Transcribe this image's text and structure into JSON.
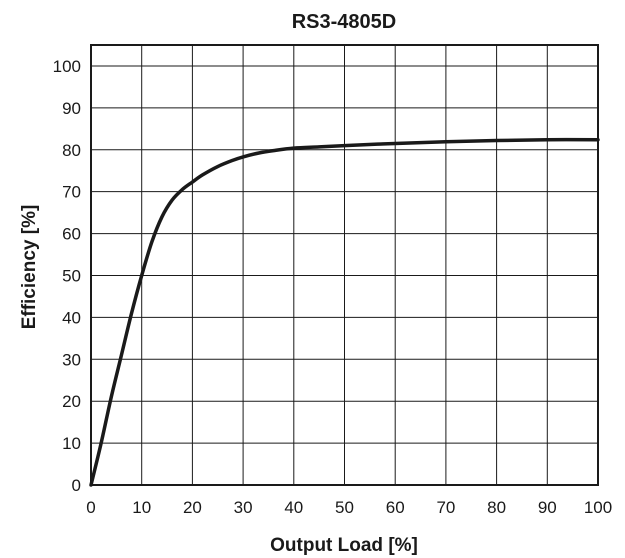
{
  "chart_data": {
    "type": "line",
    "title": "RS3-4805D",
    "xlabel": "Output Load [%]",
    "ylabel": "Efficiency [%]",
    "xlim": [
      0,
      100
    ],
    "ylim": [
      0,
      105
    ],
    "x_ticks": [
      0,
      10,
      20,
      30,
      40,
      50,
      60,
      70,
      80,
      90,
      100
    ],
    "y_ticks": [
      0,
      10,
      20,
      30,
      40,
      50,
      60,
      70,
      80,
      90,
      100
    ],
    "grid": true,
    "series": [
      {
        "color": "#1a1a1a",
        "x": [
          0,
          2,
          4,
          6,
          8,
          10,
          12,
          14,
          16,
          18,
          20,
          22,
          25,
          28,
          30,
          33,
          36,
          40,
          45,
          50,
          60,
          70,
          80,
          90,
          100
        ],
        "y": [
          0,
          10,
          21,
          31,
          41,
          50,
          58,
          64,
          68,
          70.5,
          72.3,
          74,
          76,
          77.5,
          78.3,
          79.2,
          79.8,
          80.4,
          80.7,
          81,
          81.5,
          81.9,
          82.2,
          82.4,
          82.4
        ]
      }
    ]
  }
}
